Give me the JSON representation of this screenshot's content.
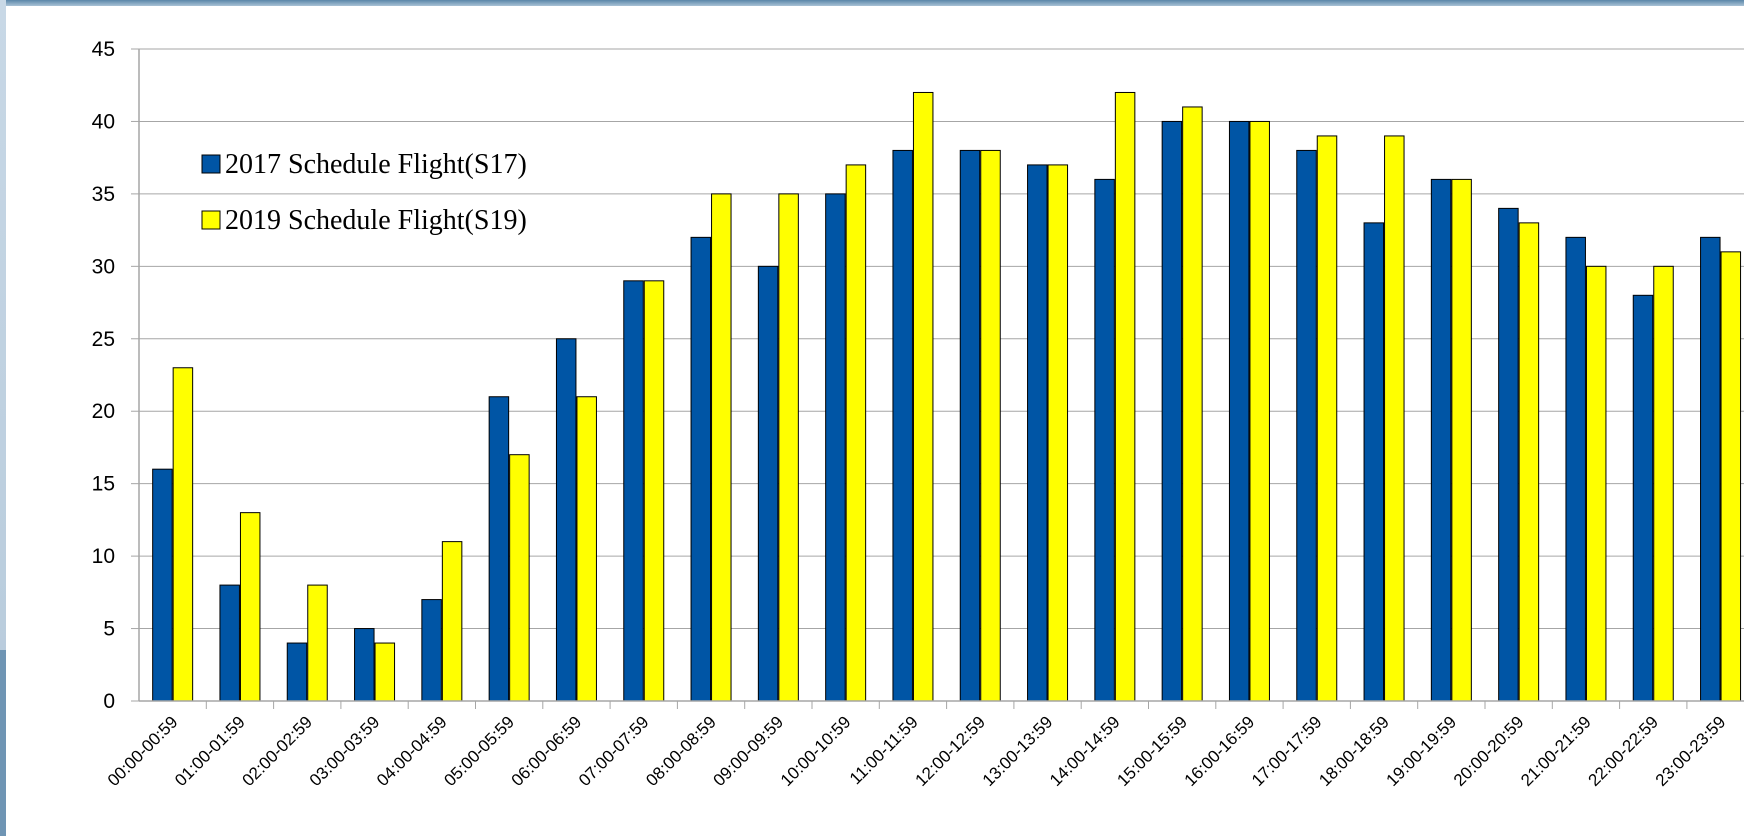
{
  "colors": {
    "series_2017": "#0055A5",
    "series_2019": "#FFFF00",
    "grid": "#A6A6A6",
    "bar_outline": "#000000"
  },
  "chart_data": {
    "type": "bar",
    "title": "",
    "xlabel": "",
    "ylabel": "",
    "ylim": [
      0,
      45
    ],
    "yticks": [
      0,
      5,
      10,
      15,
      20,
      25,
      30,
      35,
      40,
      45
    ],
    "grid": true,
    "legend_position": "top-left",
    "categories": [
      "00:00-00:59",
      "01:00-01:59",
      "02:00-02:59",
      "03:00-03:59",
      "04:00-04:59",
      "05:00-05:59",
      "06:00-06:59",
      "07:00-07:59",
      "08:00-08:59",
      "09:00-09:59",
      "10:00-10:59",
      "11:00-11:59",
      "12:00-12:59",
      "13:00-13:59",
      "14:00-14:59",
      "15:00-15:59",
      "16:00-16:59",
      "17:00-17:59",
      "18:00-18:59",
      "19:00-19:59",
      "20:00-20:59",
      "21:00-21:59",
      "22:00-22:59",
      "23:00-23:59"
    ],
    "series": [
      {
        "name": "2017 Schedule Flight(S17)",
        "color": "#0055A5",
        "values": [
          16,
          8,
          4,
          5,
          7,
          21,
          25,
          29,
          32,
          30,
          35,
          38,
          38,
          37,
          36,
          40,
          40,
          38,
          33,
          36,
          34,
          32,
          28,
          32
        ]
      },
      {
        "name": "2019 Schedule Flight(S19)",
        "color": "#FFFF00",
        "values": [
          23,
          13,
          8,
          4,
          11,
          17,
          21,
          29,
          35,
          35,
          37,
          42,
          38,
          37,
          42,
          41,
          40,
          39,
          39,
          36,
          33,
          30,
          30,
          31
        ]
      }
    ]
  }
}
